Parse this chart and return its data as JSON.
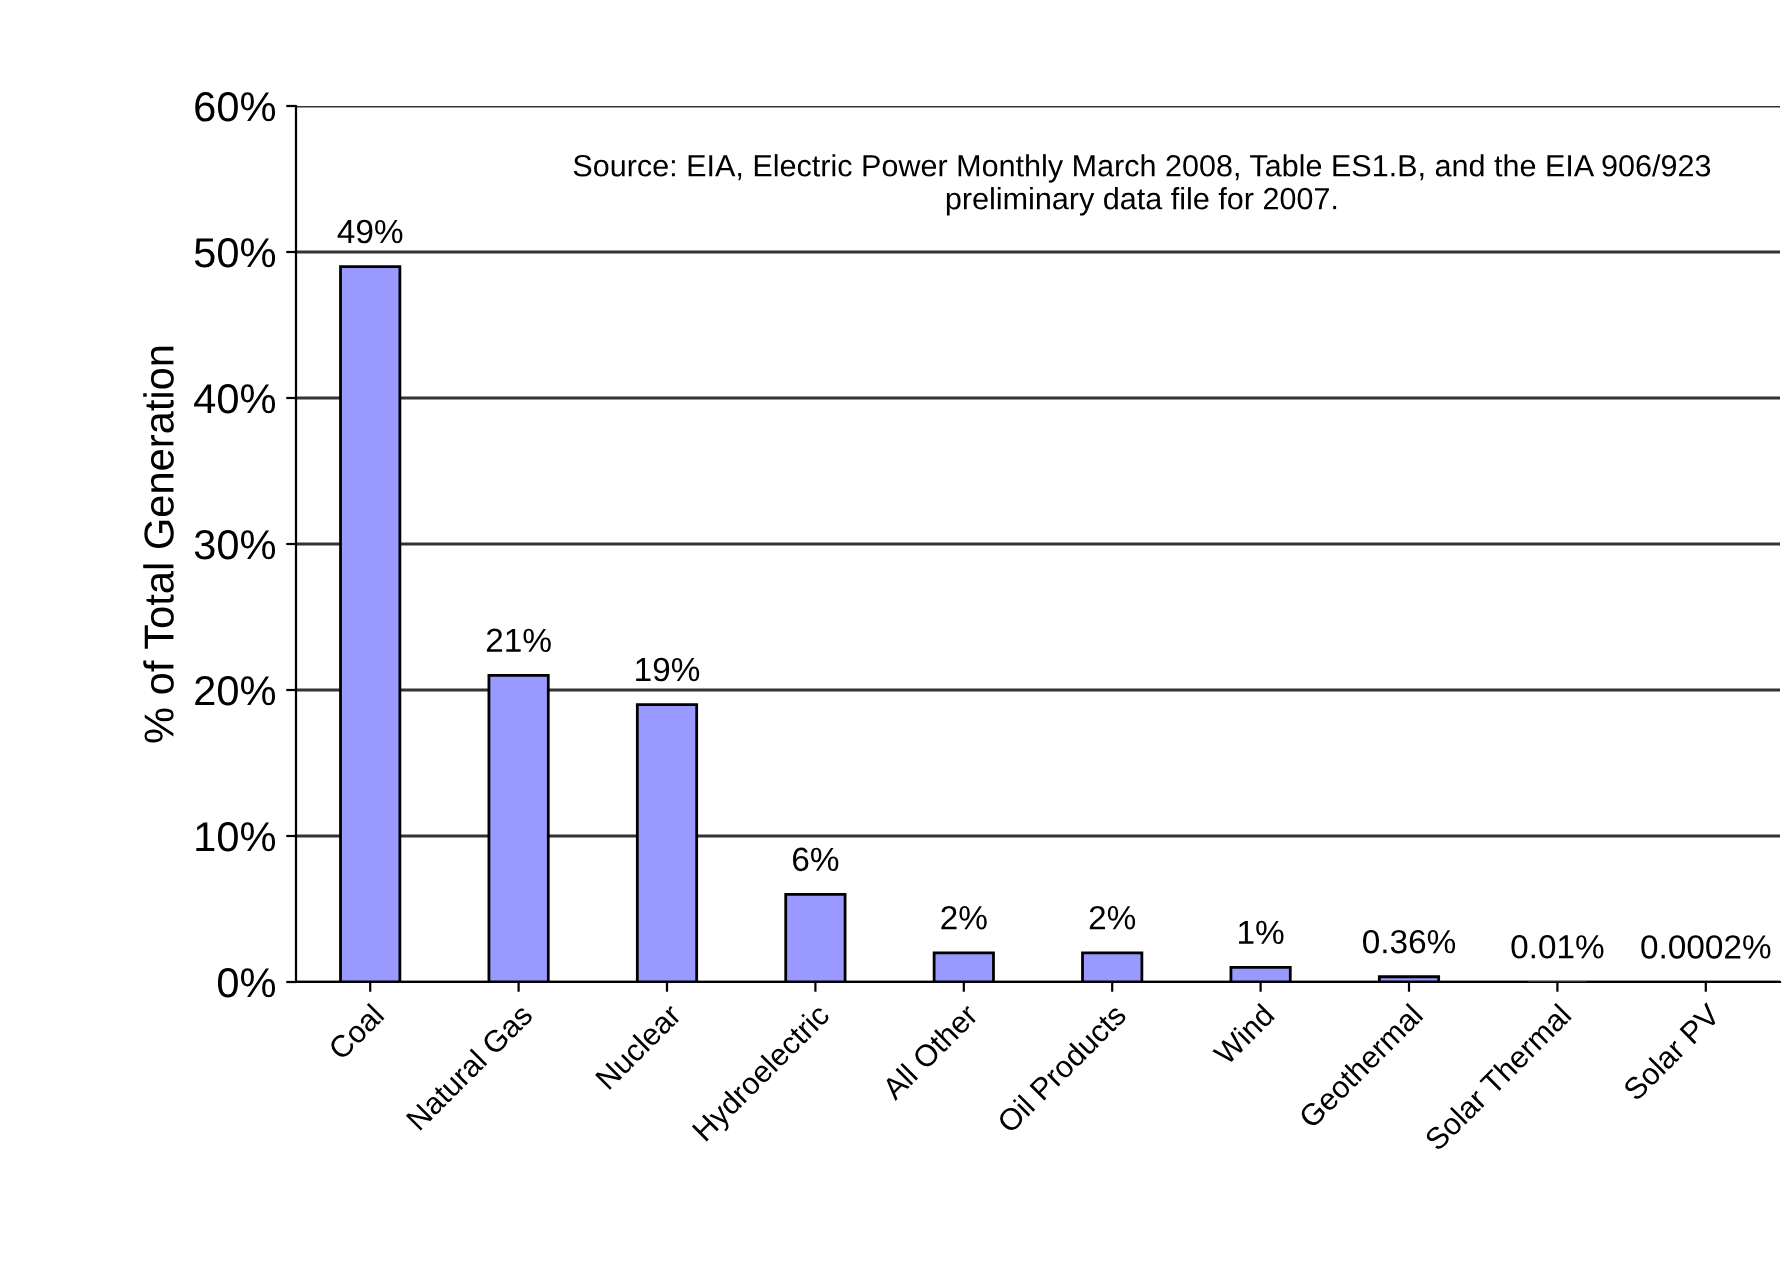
{
  "chart_data": {
    "type": "bar",
    "ylabel": "% of Total Generation",
    "categories": [
      "Coal",
      "Natural Gas",
      "Nuclear",
      "Hydroelectric",
      "All Other",
      "Oil Products",
      "Wind",
      "Geothermal",
      "Solar Thermal",
      "Solar PV"
    ],
    "values": [
      49,
      21,
      19,
      6,
      2,
      2,
      1,
      0.36,
      0.01,
      0.0002
    ],
    "value_labels": [
      "49%",
      "21%",
      "19%",
      "6%",
      "2%",
      "2%",
      "1%",
      "0.36%",
      "0.01%",
      "0.0002%"
    ],
    "color": "#9999ff",
    "ylim": [
      0,
      60
    ],
    "yticks": [
      {
        "value": 0,
        "label": "0%"
      },
      {
        "value": 10,
        "label": "10%"
      },
      {
        "value": 20,
        "label": "20%"
      },
      {
        "value": 30,
        "label": "30%"
      },
      {
        "value": 40,
        "label": "40%"
      },
      {
        "value": 50,
        "label": "50%"
      },
      {
        "value": 60,
        "label": "60%"
      }
    ],
    "grid": "y",
    "annotations": [
      "Source: EIA, Electric Power Monthly March 2008, Table ES1.B, and the EIA 906/923 preliminary data file for 2007."
    ]
  }
}
